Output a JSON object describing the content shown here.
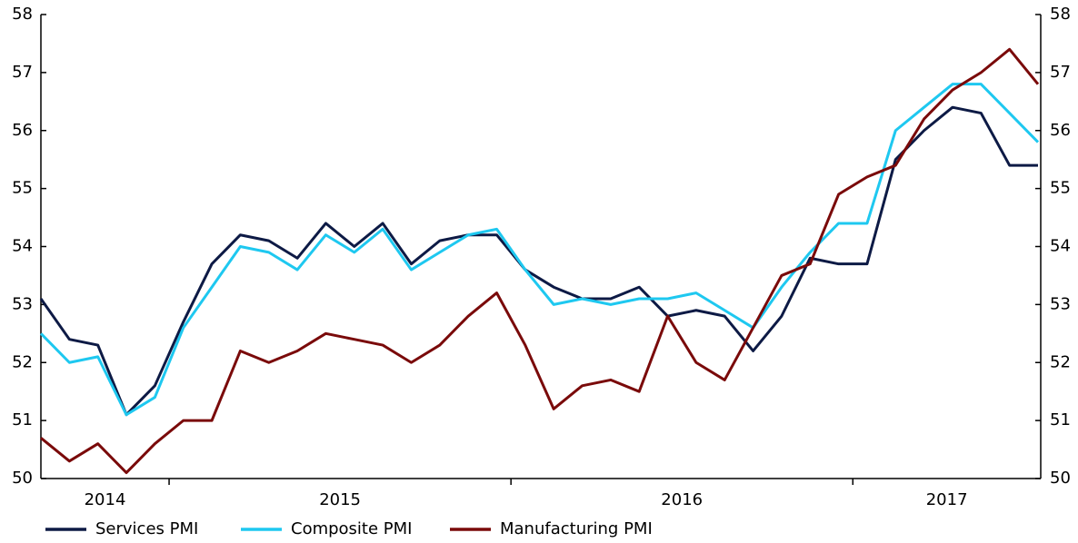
{
  "chart_data": {
    "type": "line",
    "categories": [
      "2014",
      null,
      null,
      null,
      null,
      "2015",
      null,
      null,
      null,
      null,
      null,
      null,
      null,
      null,
      null,
      null,
      null,
      "2016",
      null,
      null,
      null,
      null,
      null,
      null,
      null,
      null,
      null,
      null,
      null,
      "2017",
      null,
      null,
      null,
      null,
      null,
      null
    ],
    "series": [
      {
        "name": "Services PMI",
        "color": "#0d1a45",
        "values": [
          53.1,
          52.4,
          52.3,
          51.1,
          51.6,
          52.7,
          53.7,
          54.2,
          54.1,
          53.8,
          54.4,
          54.0,
          54.4,
          53.7,
          54.1,
          54.2,
          54.2,
          53.6,
          53.3,
          53.1,
          53.1,
          53.3,
          52.8,
          52.9,
          52.8,
          52.2,
          52.8,
          53.8,
          53.7,
          53.7,
          55.5,
          56.0,
          56.4,
          56.3,
          55.4,
          55.4
        ]
      },
      {
        "name": "Composite PMI",
        "color": "#1ec8f0",
        "values": [
          52.5,
          52.0,
          52.1,
          51.1,
          51.4,
          52.6,
          53.3,
          54.0,
          53.9,
          53.6,
          54.2,
          53.9,
          54.3,
          53.6,
          53.9,
          54.2,
          54.3,
          53.6,
          53.0,
          53.1,
          53.0,
          53.1,
          53.1,
          53.2,
          52.9,
          52.6,
          53.3,
          53.9,
          54.4,
          54.4,
          56.0,
          56.4,
          56.8,
          56.8,
          56.3,
          55.8
        ]
      },
      {
        "name": "Manufacturing PMI",
        "color": "#7a0a0a",
        "values": [
          50.7,
          50.3,
          50.6,
          50.1,
          50.6,
          51.0,
          51.0,
          52.2,
          52.0,
          52.2,
          52.5,
          52.4,
          52.3,
          52.0,
          52.3,
          52.8,
          53.2,
          52.3,
          51.2,
          51.6,
          51.7,
          51.5,
          52.8,
          52.0,
          51.7,
          52.6,
          53.5,
          53.7,
          54.9,
          55.2,
          55.4,
          56.2,
          56.7,
          57.0,
          57.4,
          56.8
        ]
      }
    ],
    "ylim": [
      50,
      58
    ],
    "yticks": [
      50,
      51,
      52,
      53,
      54,
      55,
      56,
      57,
      58
    ],
    "y2lim": [
      50,
      58
    ],
    "y2ticks": [
      50,
      51,
      52,
      53,
      54,
      55,
      56,
      57,
      58
    ],
    "legend": "bottom"
  }
}
